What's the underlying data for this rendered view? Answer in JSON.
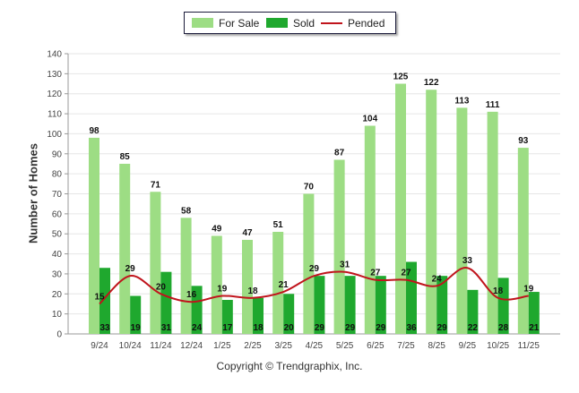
{
  "chart_data": {
    "type": "bar",
    "ylabel": "Number of Homes",
    "ylim": [
      0,
      140
    ],
    "yticks": [
      0,
      10,
      20,
      30,
      40,
      50,
      60,
      70,
      80,
      90,
      100,
      110,
      120,
      130,
      140
    ],
    "categories": [
      "9/24",
      "10/24",
      "11/24",
      "12/24",
      "1/25",
      "2/25",
      "3/25",
      "4/25",
      "5/25",
      "6/25",
      "7/25",
      "8/25",
      "9/25",
      "10/25",
      "11/25"
    ],
    "series": [
      {
        "name": "For Sale",
        "type": "bar",
        "color": "#9ddd84",
        "values": [
          98,
          85,
          71,
          58,
          49,
          47,
          51,
          70,
          87,
          104,
          125,
          122,
          113,
          111,
          93
        ]
      },
      {
        "name": "Sold",
        "type": "bar",
        "color": "#1fa82e",
        "values": [
          33,
          19,
          31,
          24,
          17,
          18,
          20,
          29,
          29,
          29,
          36,
          29,
          22,
          28,
          21
        ]
      },
      {
        "name": "Pended",
        "type": "line",
        "color": "#c0141c",
        "values": [
          15,
          29,
          20,
          16,
          19,
          18,
          21,
          29,
          31,
          27,
          27,
          24,
          33,
          18,
          19
        ]
      }
    ],
    "legend_position": "top-center"
  },
  "footer": {
    "copyright": "Copyright © Trendgraphix, Inc."
  }
}
